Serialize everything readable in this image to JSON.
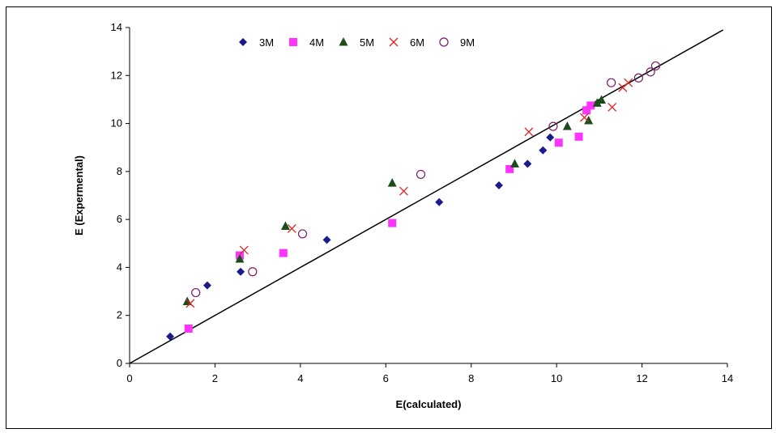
{
  "chart_data": {
    "type": "scatter",
    "title": "",
    "xlabel": "E(calculated)",
    "ylabel": "E (Expermental)",
    "xlim": [
      0,
      14
    ],
    "ylim": [
      0,
      14
    ],
    "x_ticks": [
      0,
      2,
      4,
      6,
      8,
      10,
      12,
      14
    ],
    "y_ticks": [
      0,
      2,
      4,
      6,
      8,
      10,
      12,
      14
    ],
    "grid": false,
    "legend_position": "top",
    "reference_line": {
      "x": [
        0,
        13.9
      ],
      "y": [
        0,
        13.9
      ]
    },
    "series": [
      {
        "name": "3M",
        "marker": "diamond",
        "color": "#1a1a8c",
        "points": [
          [
            0.95,
            1.12
          ],
          [
            1.82,
            3.25
          ],
          [
            2.6,
            3.82
          ],
          [
            4.62,
            5.15
          ],
          [
            7.25,
            6.72
          ],
          [
            8.65,
            7.42
          ],
          [
            9.32,
            8.32
          ],
          [
            9.68,
            8.88
          ],
          [
            9.85,
            9.42
          ]
        ]
      },
      {
        "name": "4M",
        "marker": "square",
        "color": "#ff33ff",
        "points": [
          [
            1.38,
            1.45
          ],
          [
            2.58,
            4.5
          ],
          [
            3.6,
            4.6
          ],
          [
            6.15,
            5.85
          ],
          [
            8.9,
            8.1
          ],
          [
            10.05,
            9.2
          ],
          [
            10.52,
            9.45
          ],
          [
            10.7,
            10.55
          ],
          [
            10.8,
            10.75
          ]
        ]
      },
      {
        "name": "5M",
        "marker": "triangle",
        "color": "#1a4d1a",
        "points": [
          [
            1.35,
            2.58
          ],
          [
            2.58,
            4.35
          ],
          [
            3.65,
            5.72
          ],
          [
            6.15,
            7.52
          ],
          [
            9.02,
            8.32
          ],
          [
            10.25,
            9.88
          ],
          [
            10.75,
            10.12
          ],
          [
            10.95,
            10.85
          ],
          [
            11.05,
            10.98
          ]
        ]
      },
      {
        "name": "6M",
        "marker": "x",
        "color": "#e02020",
        "points": [
          [
            1.42,
            2.5
          ],
          [
            2.68,
            4.72
          ],
          [
            3.8,
            5.62
          ],
          [
            6.42,
            7.18
          ],
          [
            9.35,
            9.65
          ],
          [
            10.65,
            10.25
          ],
          [
            11.3,
            10.68
          ],
          [
            11.55,
            11.5
          ],
          [
            11.68,
            11.7
          ]
        ]
      },
      {
        "name": "9M",
        "marker": "circle",
        "color": "#7a1a6a",
        "points": [
          [
            1.55,
            2.95
          ],
          [
            2.88,
            3.82
          ],
          [
            4.05,
            5.4
          ],
          [
            6.82,
            7.88
          ],
          [
            9.92,
            9.88
          ],
          [
            11.28,
            11.7
          ],
          [
            11.92,
            11.9
          ],
          [
            12.2,
            12.15
          ],
          [
            12.32,
            12.4
          ]
        ]
      }
    ]
  }
}
